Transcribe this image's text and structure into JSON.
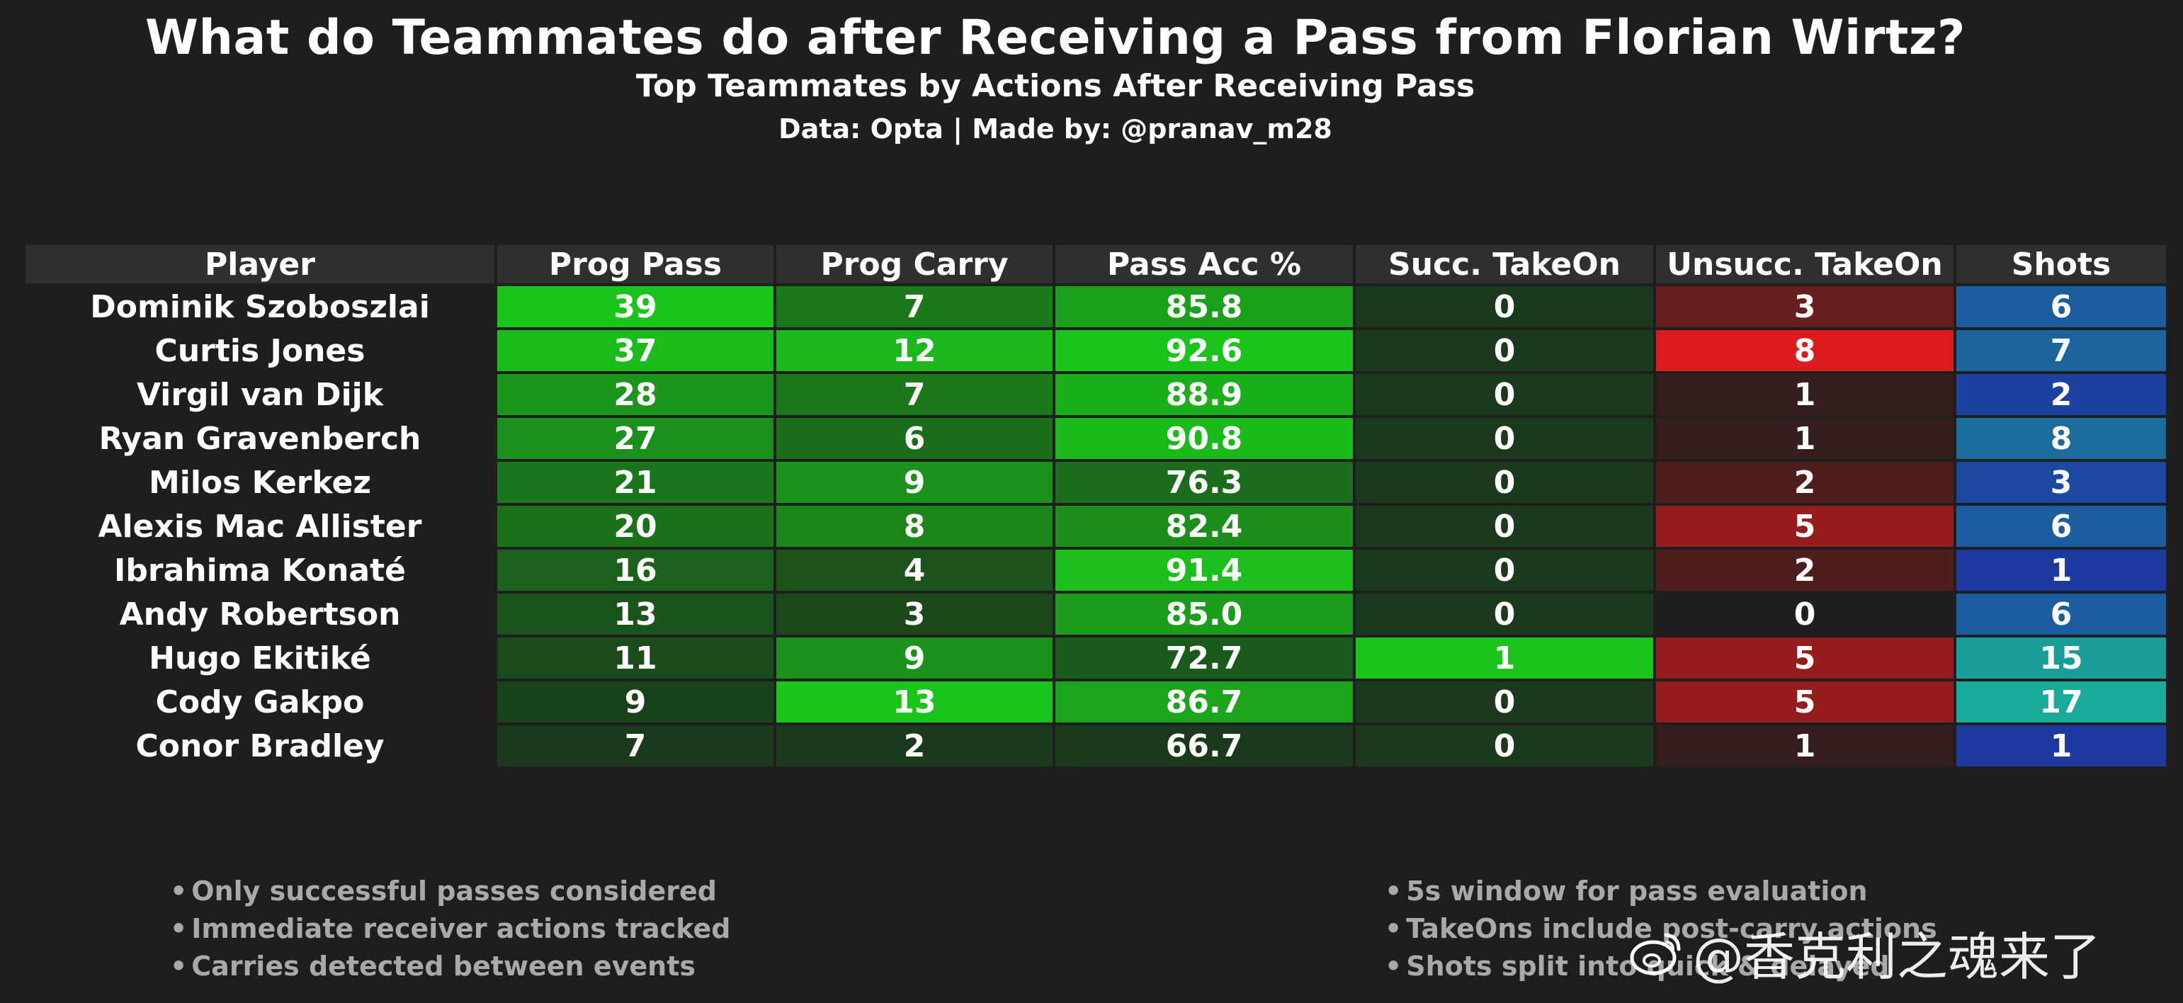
{
  "chart_data": {
    "type": "table",
    "title": "What do Teammates do after Receiving a Pass from Florian Wirtz?",
    "subtitle": "Top Teammates by Actions After Receiving Pass",
    "credit": "Data: Opta  |  Made by: @pranav_m28",
    "columns": [
      "Player",
      "Prog Pass",
      "Prog Carry",
      "Pass Acc %",
      "Succ. TakeOn",
      "Unsucc. TakeOn",
      "Shots"
    ],
    "rows": [
      {
        "player": "Dominik Szoboszlai",
        "values": [
          "39",
          "7",
          "85.8",
          "0",
          "3",
          "6"
        ]
      },
      {
        "player": "Curtis Jones",
        "values": [
          "37",
          "12",
          "92.6",
          "0",
          "8",
          "7"
        ]
      },
      {
        "player": "Virgil van Dijk",
        "values": [
          "28",
          "7",
          "88.9",
          "0",
          "1",
          "2"
        ]
      },
      {
        "player": "Ryan Gravenberch",
        "values": [
          "27",
          "6",
          "90.8",
          "0",
          "1",
          "8"
        ]
      },
      {
        "player": "Milos Kerkez",
        "values": [
          "21",
          "9",
          "76.3",
          "0",
          "2",
          "3"
        ]
      },
      {
        "player": "Alexis Mac Allister",
        "values": [
          "20",
          "8",
          "82.4",
          "0",
          "5",
          "6"
        ]
      },
      {
        "player": "Ibrahima Konaté",
        "values": [
          "16",
          "4",
          "91.4",
          "0",
          "2",
          "1"
        ]
      },
      {
        "player": "Andy Robertson",
        "values": [
          "13",
          "3",
          "85.0",
          "0",
          "0",
          "6"
        ]
      },
      {
        "player": "Hugo Ekitiké",
        "values": [
          "11",
          "9",
          "72.7",
          "1",
          "5",
          "15"
        ]
      },
      {
        "player": "Cody Gakpo",
        "values": [
          "9",
          "13",
          "86.7",
          "0",
          "5",
          "17"
        ]
      },
      {
        "player": "Conor Bradley",
        "values": [
          "7",
          "2",
          "66.7",
          "0",
          "1",
          "1"
        ]
      }
    ],
    "color_scales": {
      "green": {
        "low": "#1b3a1b",
        "high": "#1bc41b"
      },
      "red": {
        "low": "#1e1e1e",
        "high": "#dc1c1c"
      },
      "blue_teal": {
        "low": "#1c3aa0",
        "high": "#1aaa9a"
      }
    }
  },
  "notes_left": [
    "Only successful passes considered",
    "Immediate receiver actions tracked",
    "Carries detected between events"
  ],
  "notes_right": [
    "5s window for pass evaluation",
    "TakeOns include post-carry actions",
    "Shots split into quick & delayed"
  ],
  "bullet": "•",
  "watermark": "@香克利之魂来了"
}
